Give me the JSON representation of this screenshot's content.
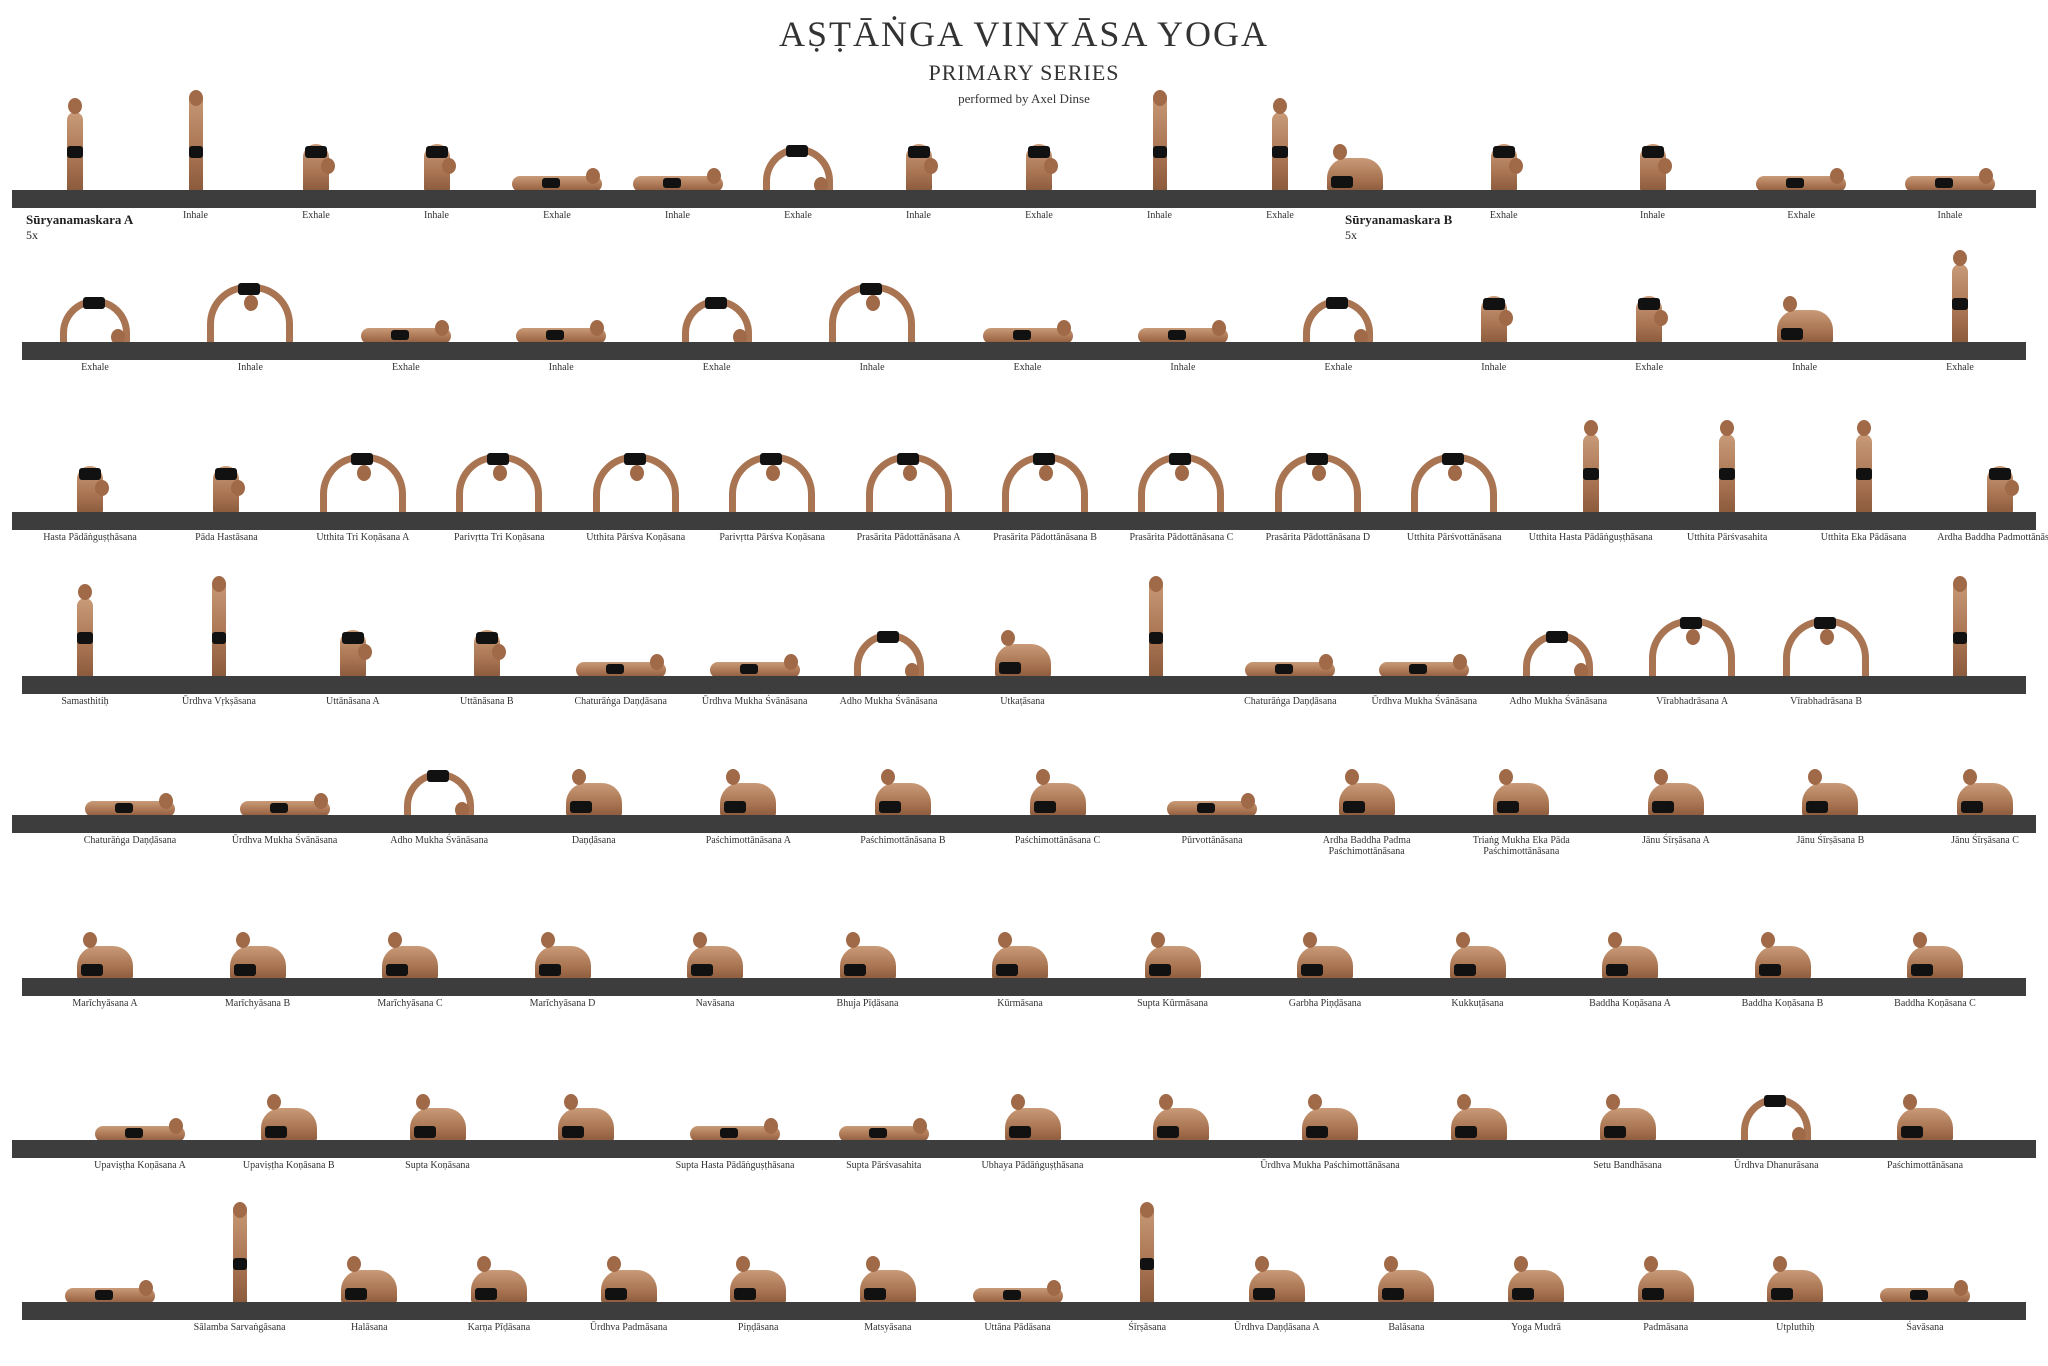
{
  "header": {
    "title": "AṢṬĀṄGA VINYĀSA YOGA",
    "subtitle": "PRIMARY SERIES",
    "credit": "performed by Axel Dinse"
  },
  "sequences": {
    "a": {
      "label": "Sūryanamaskara A",
      "count": "5x"
    },
    "b": {
      "label": "Sūryanamaskara B",
      "count": "5x"
    }
  },
  "rows": [
    {
      "poses": [
        {
          "label": "",
          "shape": "standing"
        },
        {
          "label": "Inhale",
          "shape": "tall"
        },
        {
          "label": "Exhale",
          "shape": "fold"
        },
        {
          "label": "Inhale",
          "shape": "fold"
        },
        {
          "label": "Exhale",
          "shape": "flat"
        },
        {
          "label": "Inhale",
          "shape": "flat"
        },
        {
          "label": "Exhale",
          "shape": "dog"
        },
        {
          "label": "Inhale",
          "shape": "fold"
        },
        {
          "label": "Exhale",
          "shape": "fold"
        },
        {
          "label": "Inhale",
          "shape": "tall"
        },
        {
          "label": "Exhale",
          "shape": "standing"
        },
        {
          "label": "",
          "shape": "seated"
        },
        {
          "label": "Exhale",
          "shape": "fold"
        },
        {
          "label": "Inhale",
          "shape": "fold"
        },
        {
          "label": "Exhale",
          "shape": "flat"
        },
        {
          "label": "Inhale",
          "shape": "flat"
        }
      ]
    },
    {
      "poses": [
        {
          "label": "Exhale",
          "shape": "dog"
        },
        {
          "label": "Inhale",
          "shape": "wide"
        },
        {
          "label": "Exhale",
          "shape": "flat"
        },
        {
          "label": "Inhale",
          "shape": "flat"
        },
        {
          "label": "Exhale",
          "shape": "dog"
        },
        {
          "label": "Inhale",
          "shape": "wide"
        },
        {
          "label": "Exhale",
          "shape": "flat"
        },
        {
          "label": "Inhale",
          "shape": "flat"
        },
        {
          "label": "Exhale",
          "shape": "dog"
        },
        {
          "label": "Inhale",
          "shape": "fold"
        },
        {
          "label": "Exhale",
          "shape": "fold"
        },
        {
          "label": "Inhale",
          "shape": "seated"
        },
        {
          "label": "Exhale",
          "shape": "standing"
        }
      ]
    },
    {
      "poses": [
        {
          "label": "Hasta Pādāṅguṣṭhāsana",
          "shape": "fold"
        },
        {
          "label": "Pāda Hastāsana",
          "shape": "fold"
        },
        {
          "label": "Utthita Tri Koṇāsana A",
          "shape": "wide"
        },
        {
          "label": "Parivṛtta Tri Koṇāsana",
          "shape": "wide"
        },
        {
          "label": "Utthita Pārśva Koṇāsana",
          "shape": "wide"
        },
        {
          "label": "Parivṛtta Pārśva Koṇāsana",
          "shape": "wide"
        },
        {
          "label": "Prasārita Pādottānāsana A",
          "shape": "wide"
        },
        {
          "label": "Prasārita Pādottānāsana B",
          "shape": "wide"
        },
        {
          "label": "Prasārita Pādottānāsana C",
          "shape": "wide"
        },
        {
          "label": "Prasārita Pādottānāsana D",
          "shape": "wide"
        },
        {
          "label": "Utthita Pārśvottānāsana",
          "shape": "wide"
        },
        {
          "label": "Utthita Hasta Pādāṅguṣṭhāsana",
          "shape": "standing"
        },
        {
          "label": "Utthita Pārśvasahita",
          "shape": "standing"
        },
        {
          "label": "Utthita Eka Pādāsana",
          "shape": "standing"
        },
        {
          "label": "Ardha Baddha Padmottānāsana",
          "shape": "fold"
        }
      ]
    },
    {
      "poses": [
        {
          "label": "Samasthitiḥ",
          "shape": "standing"
        },
        {
          "label": "Ūrdhva Vṛkṣāsana",
          "shape": "tall"
        },
        {
          "label": "Uttānāsana A",
          "shape": "fold"
        },
        {
          "label": "Uttānāsana B",
          "shape": "fold"
        },
        {
          "label": "Chaturāṅga Daṇḍāsana",
          "shape": "flat"
        },
        {
          "label": "Ūrdhva Mukha Śvānāsana",
          "shape": "flat"
        },
        {
          "label": "Adho Mukha Śvānāsana",
          "shape": "dog"
        },
        {
          "label": "Utkaṭāsana",
          "shape": "seated"
        },
        {
          "label": "",
          "shape": "tall"
        },
        {
          "label": "Chaturāṅga Daṇḍāsana",
          "shape": "flat"
        },
        {
          "label": "Ūrdhva Mukha Śvānāsana",
          "shape": "flat"
        },
        {
          "label": "Adho Mukha Śvānāsana",
          "shape": "dog"
        },
        {
          "label": "Vīrabhadrāsana A",
          "shape": "wide"
        },
        {
          "label": "Vīrabhadrāsana B",
          "shape": "wide"
        },
        {
          "label": "",
          "shape": "tall"
        }
      ]
    },
    {
      "poses": [
        {
          "label": "Chaturāṅga Daṇḍāsana",
          "shape": "flat"
        },
        {
          "label": "Ūrdhva Mukha Śvānāsana",
          "shape": "flat"
        },
        {
          "label": "Adho Mukha Śvānāsana",
          "shape": "dog"
        },
        {
          "label": "Daṇḍāsana",
          "shape": "seated"
        },
        {
          "label": "Paśchimottānāsana A",
          "shape": "seated"
        },
        {
          "label": "Paśchimottānāsana B",
          "shape": "seated"
        },
        {
          "label": "Paśchimottānāsana C",
          "shape": "seated"
        },
        {
          "label": "Pūrvottānāsana",
          "shape": "flat"
        },
        {
          "label": "Ardha Baddha Padma Paśchimottānāsana",
          "shape": "seated"
        },
        {
          "label": "Triaṅg Mukha Eka Pāda Paśchimottānāsana",
          "shape": "seated"
        },
        {
          "label": "Jānu Śīrṣāsana A",
          "shape": "seated"
        },
        {
          "label": "Jānu Śīrṣāsana B",
          "shape": "seated"
        },
        {
          "label": "Jānu Śīrṣāsana C",
          "shape": "seated"
        }
      ]
    },
    {
      "poses": [
        {
          "label": "Marīchyāsana A",
          "shape": "seated"
        },
        {
          "label": "Marīchyāsana B",
          "shape": "seated"
        },
        {
          "label": "Marīchyāsana C",
          "shape": "seated"
        },
        {
          "label": "Marīchyāsana D",
          "shape": "seated"
        },
        {
          "label": "Navāsana",
          "shape": "seated"
        },
        {
          "label": "Bhuja Pīḍāsana",
          "shape": "seated"
        },
        {
          "label": "Kūrmāsana",
          "shape": "seated"
        },
        {
          "label": "Supta Kūrmāsana",
          "shape": "seated"
        },
        {
          "label": "Garbha Piṇḍāsana",
          "shape": "seated"
        },
        {
          "label": "Kukkuṭāsana",
          "shape": "seated"
        },
        {
          "label": "Baddha Koṇāsana A",
          "shape": "seated"
        },
        {
          "label": "Baddha Koṇāsana B",
          "shape": "seated"
        },
        {
          "label": "Baddha Koṇāsana C",
          "shape": "seated"
        }
      ]
    },
    {
      "poses": [
        {
          "label": "Upaviṣṭha Koṇāsana A",
          "shape": "flat"
        },
        {
          "label": "Upaviṣṭha Koṇāsana B",
          "shape": "seated"
        },
        {
          "label": "Supta Koṇāsana",
          "shape": "seated"
        },
        {
          "label": "",
          "shape": "seated"
        },
        {
          "label": "Supta Hasta Pādāṅguṣṭhāsana",
          "shape": "flat"
        },
        {
          "label": "Supta Pārśvasahita",
          "shape": "flat"
        },
        {
          "label": "Ubhaya Pādāṅguṣṭhāsana",
          "shape": "seated"
        },
        {
          "label": "",
          "shape": "seated"
        },
        {
          "label": "Ūrdhva Mukha Paśchimottānāsana",
          "shape": "seated"
        },
        {
          "label": "",
          "shape": "seated"
        },
        {
          "label": "Setu Bandhāsana",
          "shape": "seated"
        },
        {
          "label": "Ūrdhva Dhanurāsana",
          "shape": "dog"
        },
        {
          "label": "Paśchimottānāsana",
          "shape": "seated"
        }
      ]
    },
    {
      "poses": [
        {
          "label": "",
          "shape": "flat"
        },
        {
          "label": "Sālamba Sarvaṅgāsana",
          "shape": "tall"
        },
        {
          "label": "Halāsana",
          "shape": "seated"
        },
        {
          "label": "Karṇa Pīḍāsana",
          "shape": "seated"
        },
        {
          "label": "Ūrdhva Padmāsana",
          "shape": "seated"
        },
        {
          "label": "Piṇḍāsana",
          "shape": "seated"
        },
        {
          "label": "Matsyāsana",
          "shape": "seated"
        },
        {
          "label": "Uttāna Pādāsana",
          "shape": "flat"
        },
        {
          "label": "Śīrṣāsana",
          "shape": "tall"
        },
        {
          "label": "Ūrdhva Daṇḍāsana A",
          "shape": "seated"
        },
        {
          "label": "Balāsana",
          "shape": "seated"
        },
        {
          "label": "Yoga Mudrā",
          "shape": "seated"
        },
        {
          "label": "Padmāsana",
          "shape": "seated"
        },
        {
          "label": "Utpluthiḥ",
          "shape": "seated"
        },
        {
          "label": "Śavāsana",
          "shape": "flat"
        }
      ]
    }
  ]
}
